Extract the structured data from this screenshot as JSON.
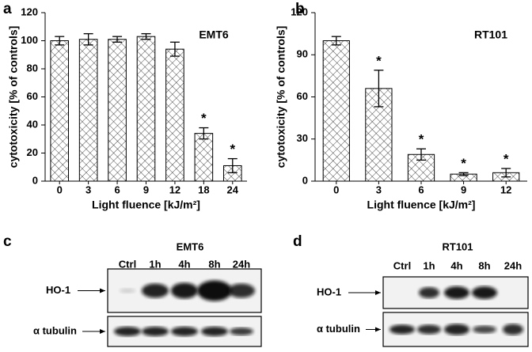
{
  "chart_data": [
    {
      "type": "bar",
      "panel_label": "a",
      "title": "EMT6",
      "x_label": "Light fluence [kJ/m²]",
      "y_label": "cytotoxicity [% of controls]",
      "categories": [
        "0",
        "3",
        "6",
        "9",
        "12",
        "18",
        "24"
      ],
      "values": [
        100,
        101,
        101,
        103,
        94,
        34,
        11
      ],
      "errors": [
        3,
        4,
        2,
        2,
        5,
        4,
        5
      ],
      "significance": [
        null,
        null,
        null,
        null,
        null,
        "*",
        "*"
      ],
      "ylim": [
        0,
        120
      ],
      "yticks": [
        0,
        20,
        40,
        60,
        80,
        100,
        120
      ],
      "color": "#000000"
    },
    {
      "type": "bar",
      "panel_label": "b",
      "title": "RT101",
      "x_label": "Light fluence [kJ/m²]",
      "y_label": "cytotoxicity [% of controls]",
      "categories": [
        "0",
        "3",
        "6",
        "9",
        "12"
      ],
      "values": [
        100,
        66,
        19,
        5,
        6
      ],
      "errors": [
        3,
        13,
        4,
        1,
        3
      ],
      "significance": [
        null,
        "*",
        "*",
        "*",
        "*"
      ],
      "ylim": [
        0,
        120
      ],
      "yticks": [
        0,
        30,
        60,
        90,
        120
      ],
      "color": "#000000"
    }
  ],
  "blots": [
    {
      "panel_label": "c",
      "title": "EMT6",
      "lanes": [
        "Ctrl",
        "1h",
        "4h",
        "8h",
        "24h"
      ],
      "rows": [
        "HO-1",
        "α tubulin"
      ]
    },
    {
      "panel_label": "d",
      "title": "RT101",
      "lanes": [
        "Ctrl",
        "1h",
        "4h",
        "8h",
        "24h"
      ],
      "rows": [
        "HO-1",
        "α tubulin"
      ]
    }
  ]
}
